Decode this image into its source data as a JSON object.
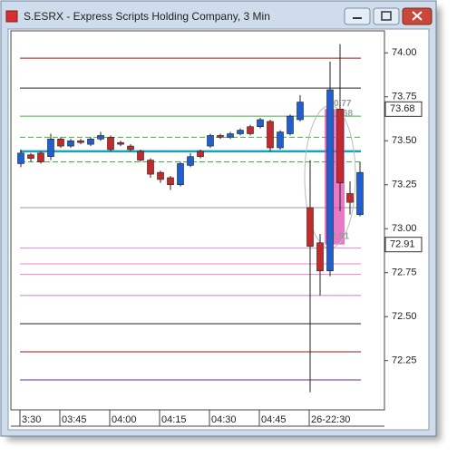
{
  "chart_data": {
    "type": "candlestick",
    "title": "S.ESRX - Express Scripts Holding Company, 3 Min",
    "categories": [
      "3:30",
      null,
      null,
      null,
      "03:45",
      null,
      null,
      null,
      null,
      "04:00",
      null,
      null,
      null,
      null,
      "04:15",
      null,
      null,
      null,
      null,
      "04:30",
      null,
      null,
      null,
      null,
      "04:45",
      null,
      null,
      null,
      null,
      "26-22:30",
      null,
      null,
      null,
      null,
      null
    ],
    "open": [
      73.37,
      73.42,
      73.43,
      73.41,
      73.51,
      73.47,
      73.5,
      73.48,
      73.51,
      73.52,
      73.49,
      73.47,
      73.44,
      73.39,
      73.32,
      73.29,
      73.25,
      73.36,
      73.44,
      73.47,
      73.53,
      73.52,
      73.54,
      73.58,
      73.58,
      73.61,
      73.46,
      73.54,
      73.62,
      73.12,
      72.92,
      72.76,
      73.68,
      73.2,
      73.08
    ],
    "high": [
      73.45,
      73.43,
      73.44,
      73.54,
      73.52,
      73.51,
      73.51,
      73.52,
      73.55,
      73.53,
      73.5,
      73.48,
      73.45,
      73.4,
      73.33,
      73.3,
      73.38,
      73.43,
      73.45,
      73.54,
      73.54,
      73.55,
      73.57,
      73.59,
      73.63,
      73.62,
      73.56,
      73.65,
      73.76,
      73.39,
      72.97,
      73.95,
      74.05,
      73.27,
      73.38
    ],
    "low": [
      73.35,
      73.38,
      73.37,
      73.39,
      73.46,
      73.46,
      73.48,
      73.47,
      73.5,
      73.44,
      73.47,
      73.44,
      73.38,
      73.29,
      73.26,
      73.22,
      73.24,
      73.35,
      73.4,
      73.46,
      73.51,
      73.51,
      73.53,
      73.53,
      73.57,
      73.44,
      73.45,
      73.53,
      73.61,
      72.07,
      72.62,
      72.73,
      73.1,
      73.08,
      73.07
    ],
    "close": [
      73.43,
      73.4,
      73.38,
      73.51,
      73.47,
      73.5,
      73.49,
      73.51,
      73.53,
      73.45,
      73.48,
      73.45,
      73.39,
      73.31,
      73.28,
      73.25,
      73.37,
      73.41,
      73.41,
      73.53,
      73.52,
      73.54,
      73.56,
      73.54,
      73.62,
      73.46,
      73.55,
      73.64,
      73.72,
      72.9,
      72.76,
      73.79,
      73.26,
      73.15,
      73.32
    ],
    "up_color": "#1f5fd0",
    "down_color": "#c42a2a",
    "ylim": [
      71.97,
      74.12
    ],
    "yticks": [
      {
        "value": 72.25,
        "label": "72.25"
      },
      {
        "value": 72.5,
        "label": "72.50"
      },
      {
        "value": 72.75,
        "label": "72.75"
      },
      {
        "value": 73,
        "label": "73.00"
      },
      {
        "value": 73.25,
        "label": "73.25"
      },
      {
        "value": 73.5,
        "label": "73.50"
      },
      {
        "value": 73.75,
        "label": "73.75"
      },
      {
        "value": 74,
        "label": "74.00"
      }
    ],
    "levels": [
      {
        "value": 73.97,
        "color": "#a01818",
        "style": "solid"
      },
      {
        "value": 73.8,
        "color": "#222222",
        "style": "solid"
      },
      {
        "value": 73.64,
        "color": "#3cb83c",
        "style": "solid"
      },
      {
        "value": 73.52,
        "color": "#3cb83c",
        "style": "dashed"
      },
      {
        "value": 73.44,
        "color": "#1aa0c0",
        "style": "thick"
      },
      {
        "value": 73.38,
        "color": "#3cb83c",
        "style": "dashed"
      },
      {
        "value": 73.12,
        "color": "#999999",
        "style": "solid"
      },
      {
        "value": 72.89,
        "color": "#e888c8",
        "style": "solid"
      },
      {
        "value": 72.8,
        "color": "#e888c8",
        "style": "solid"
      },
      {
        "value": 72.74,
        "color": "#e888c8",
        "style": "solid"
      },
      {
        "value": 72.62,
        "color": "#c080d0",
        "style": "solid"
      },
      {
        "value": 72.46,
        "color": "#222222",
        "style": "solid"
      },
      {
        "value": 72.3,
        "color": "#a01818",
        "style": "solid"
      },
      {
        "value": 72.14,
        "color": "#6a2a9a",
        "style": "solid"
      }
    ],
    "highlight": {
      "high": 73.68,
      "low": 72.91,
      "color": "#e040a8",
      "high_label": "73.68",
      "low_label": "72.91",
      "range_label": "0.77"
    },
    "price_markers": [
      {
        "value": 73.68,
        "label": "73.68"
      },
      {
        "value": 72.91,
        "label": "72.91"
      }
    ]
  }
}
